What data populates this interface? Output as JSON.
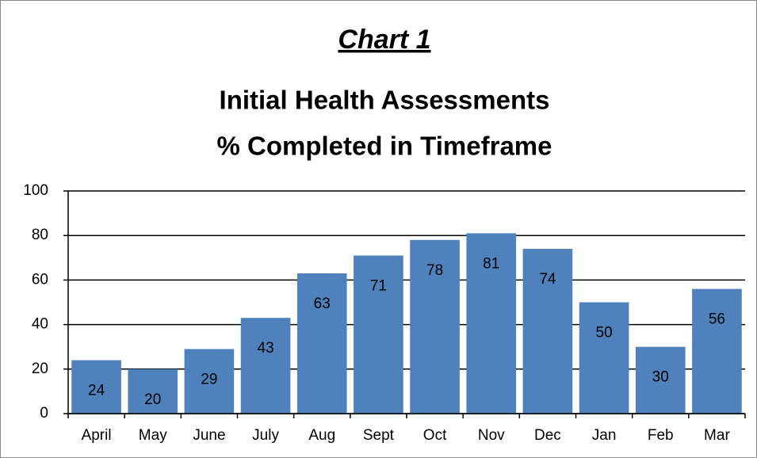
{
  "chart_data": {
    "type": "bar",
    "title": "Chart 1",
    "subtitle": [
      "Initial Health Assessments",
      "% Completed in Timeframe"
    ],
    "categories": [
      "April",
      "May",
      "June",
      "July",
      "Aug",
      "Sept",
      "Oct",
      "Nov",
      "Dec",
      "Jan",
      "Feb",
      "Mar"
    ],
    "values": [
      24,
      20,
      29,
      43,
      63,
      71,
      78,
      81,
      74,
      50,
      30,
      56
    ],
    "color": "#4f81bd",
    "ylim": [
      0,
      100
    ],
    "yticks": [
      0,
      20,
      40,
      60,
      80,
      100
    ],
    "grid": true
  }
}
